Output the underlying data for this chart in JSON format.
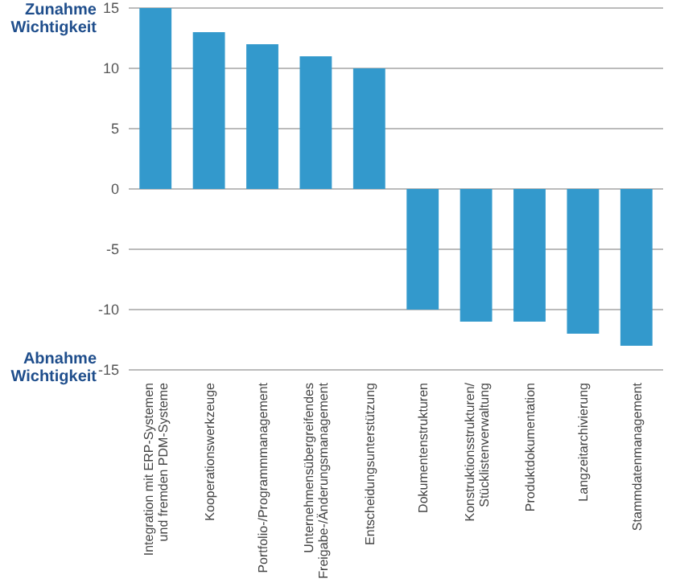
{
  "chart_data": {
    "type": "bar",
    "categories": [
      "Integration mit ERP-Systemen\nund fremden PDM-Systeme",
      "Kooperationswerkzeuge",
      "Portfolio-/Programmmanagement",
      "Unternehmensübergreifendes\nFreigabe-/Änderungsmanagement",
      "Entscheidungsunterstützung",
      "Dokumentenstrukturen",
      "Konstruktionsstrukturen/\nStücklistenverwaltung",
      "Produktdokumentation",
      "Langzeitarchivierung",
      "Stammdatenmanagement"
    ],
    "values": [
      15,
      13,
      12,
      11,
      10,
      -10,
      -11,
      -11,
      -12,
      -13
    ],
    "color": "#3399cc",
    "ylim": [
      -15,
      15
    ],
    "yticks": [
      -15,
      -10,
      -5,
      0,
      5,
      10,
      15
    ],
    "grid": "y",
    "annotations": [
      "Zunahme\nWichtigkeit",
      "Abnahme\nWichtigkeit"
    ]
  }
}
